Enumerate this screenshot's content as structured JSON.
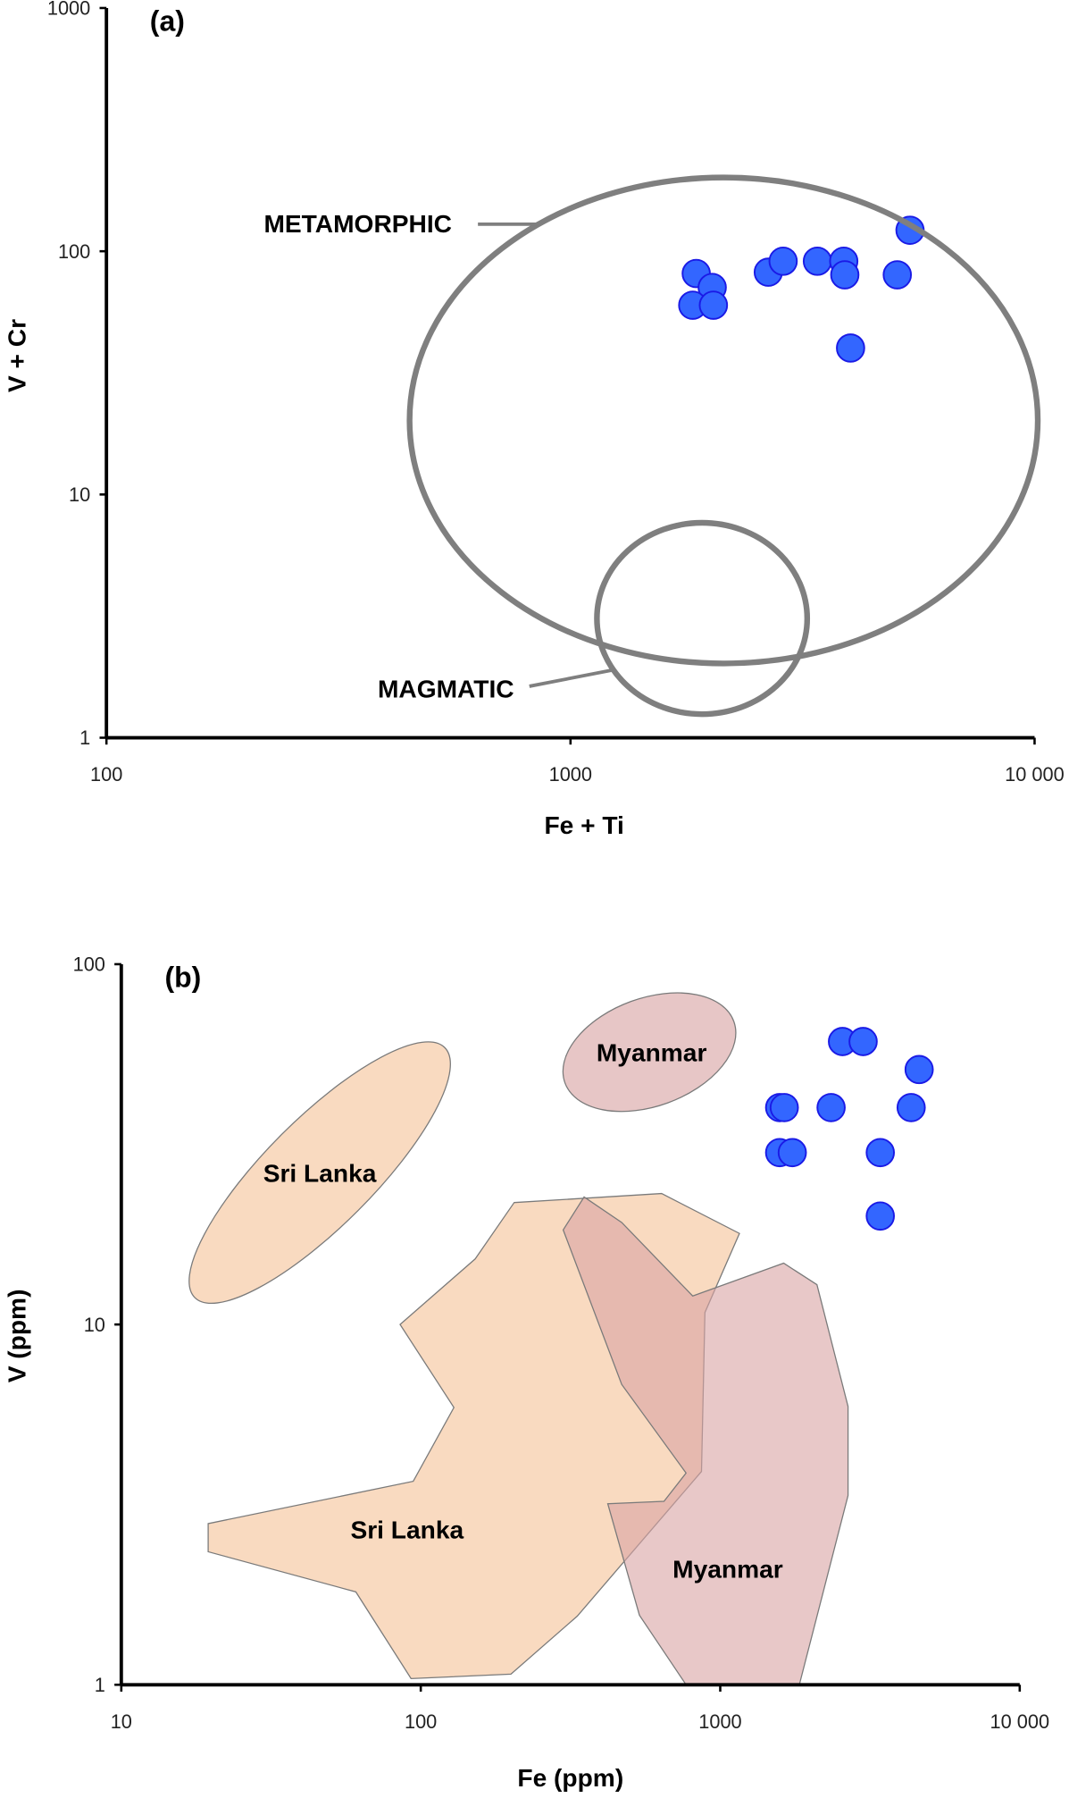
{
  "chart_data": [
    {
      "panel_label": "(a)",
      "type": "scatter",
      "xscale": "log",
      "yscale": "log",
      "xlabel": "Fe + Ti",
      "ylabel": "V + Cr",
      "xlim": [
        100,
        10000
      ],
      "ylim": [
        1,
        1000
      ],
      "xticks": [
        100,
        1000,
        10000
      ],
      "xtick_labels": [
        "100",
        "1000",
        "10 000"
      ],
      "yticks": [
        1,
        10,
        100,
        1000
      ],
      "ytick_labels": [
        "1",
        "10",
        "100",
        "1000"
      ],
      "grid": false,
      "points_color": "#3366ff",
      "points": [
        {
          "x": 1866,
          "y": 81
        },
        {
          "x": 2020,
          "y": 71
        },
        {
          "x": 1834,
          "y": 60
        },
        {
          "x": 2032,
          "y": 60
        },
        {
          "x": 2668,
          "y": 82
        },
        {
          "x": 2872,
          "y": 91
        },
        {
          "x": 3404,
          "y": 91
        },
        {
          "x": 3880,
          "y": 91
        },
        {
          "x": 3900,
          "y": 80
        },
        {
          "x": 4013,
          "y": 40
        },
        {
          "x": 5060,
          "y": 80
        },
        {
          "x": 5390,
          "y": 122
        }
      ],
      "fields": [
        {
          "name": "METAMORPHIC",
          "shape": "ellipse",
          "x_range": [
            450,
            10160
          ],
          "y_range": [
            2.02,
            201
          ],
          "color": "#7f7f7f"
        },
        {
          "name": "MAGMATIC",
          "shape": "ellipse",
          "x_range": [
            1140,
            3236
          ],
          "y_range": [
            1.25,
            7.65
          ],
          "color": "#7f7f7f"
        }
      ],
      "annotations": [
        {
          "text": "METAMORPHIC",
          "target": "METAMORPHIC"
        },
        {
          "text": "MAGMATIC",
          "target": "MAGMATIC"
        }
      ]
    },
    {
      "panel_label": "(b)",
      "type": "scatter",
      "xscale": "log",
      "yscale": "log",
      "xlabel": "Fe (ppm)",
      "ylabel": "V (ppm)",
      "xlim": [
        10,
        10000
      ],
      "ylim": [
        1,
        100
      ],
      "xticks": [
        10,
        100,
        1000,
        10000
      ],
      "xtick_labels": [
        "10",
        "100",
        "1000",
        "10 000"
      ],
      "yticks": [
        1,
        10,
        100
      ],
      "ytick_labels": [
        "1",
        "10",
        "100"
      ],
      "grid": false,
      "points_color": "#3366ff",
      "points": [
        {
          "x": 1579,
          "y": 40
        },
        {
          "x": 1636,
          "y": 40
        },
        {
          "x": 1579,
          "y": 30
        },
        {
          "x": 1740,
          "y": 30
        },
        {
          "x": 2345,
          "y": 40
        },
        {
          "x": 2560,
          "y": 61
        },
        {
          "x": 3000,
          "y": 61
        },
        {
          "x": 3423,
          "y": 30
        },
        {
          "x": 3423,
          "y": 20
        },
        {
          "x": 4340,
          "y": 40
        },
        {
          "x": 4615,
          "y": 51
        }
      ],
      "fields": [
        {
          "name": "Sri Lanka",
          "shape": "ellipse",
          "center": [
            46,
            26.4
          ],
          "semi_axes_decades": [
            0.59,
            0.18
          ],
          "rotation_deg": -45,
          "color": "#f8d3b5"
        },
        {
          "name": "Myanmar",
          "shape": "ellipse",
          "center": [
            580,
            57
          ],
          "semi_axes_decades": [
            0.3,
            0.18
          ],
          "rotation_deg": -20,
          "color": "#e3bcbc"
        },
        {
          "name": "Sri Lanka",
          "shape": "polygon",
          "color": "#f8d3b5",
          "vertices": [
            [
              205,
              21.8
            ],
            [
              637,
              23.1
            ],
            [
              1159,
              17.9
            ],
            [
              889,
              10.8
            ],
            [
              866,
              3.91
            ],
            [
              333,
              1.55
            ],
            [
              200,
              1.07
            ],
            [
              92.8,
              1.04
            ],
            [
              60.7,
              1.81
            ],
            [
              19.5,
              2.34
            ],
            [
              19.5,
              2.8
            ],
            [
              94.4,
              3.67
            ],
            [
              129,
              5.88
            ],
            [
              85.3,
              10.0
            ],
            [
              152,
              15.2
            ]
          ]
        },
        {
          "name": "Myanmar",
          "shape": "polygon",
          "color": "#d9a3a3",
          "vertices": [
            [
              351,
              22.6
            ],
            [
              469,
              19.2
            ],
            [
              809,
              12.0
            ],
            [
              1629,
              14.8
            ],
            [
              2104,
              12.9
            ],
            [
              2671,
              5.92
            ],
            [
              2671,
              3.35
            ],
            [
              1837,
              1.0
            ],
            [
              769,
              1.0
            ],
            [
              537,
              1.56
            ],
            [
              421,
              3.18
            ],
            [
              649,
              3.23
            ],
            [
              769,
              3.87
            ],
            [
              469,
              6.82
            ],
            [
              299,
              18.3
            ]
          ]
        }
      ],
      "annotations": [
        {
          "text": "Sri Lanka",
          "x": 46,
          "y": 26.4
        },
        {
          "text": "Myanmar",
          "x": 590,
          "y": 57
        },
        {
          "text": "Sri Lanka",
          "x": 90,
          "y": 2.7
        },
        {
          "text": "Myanmar",
          "x": 1060,
          "y": 2.1
        }
      ]
    }
  ]
}
